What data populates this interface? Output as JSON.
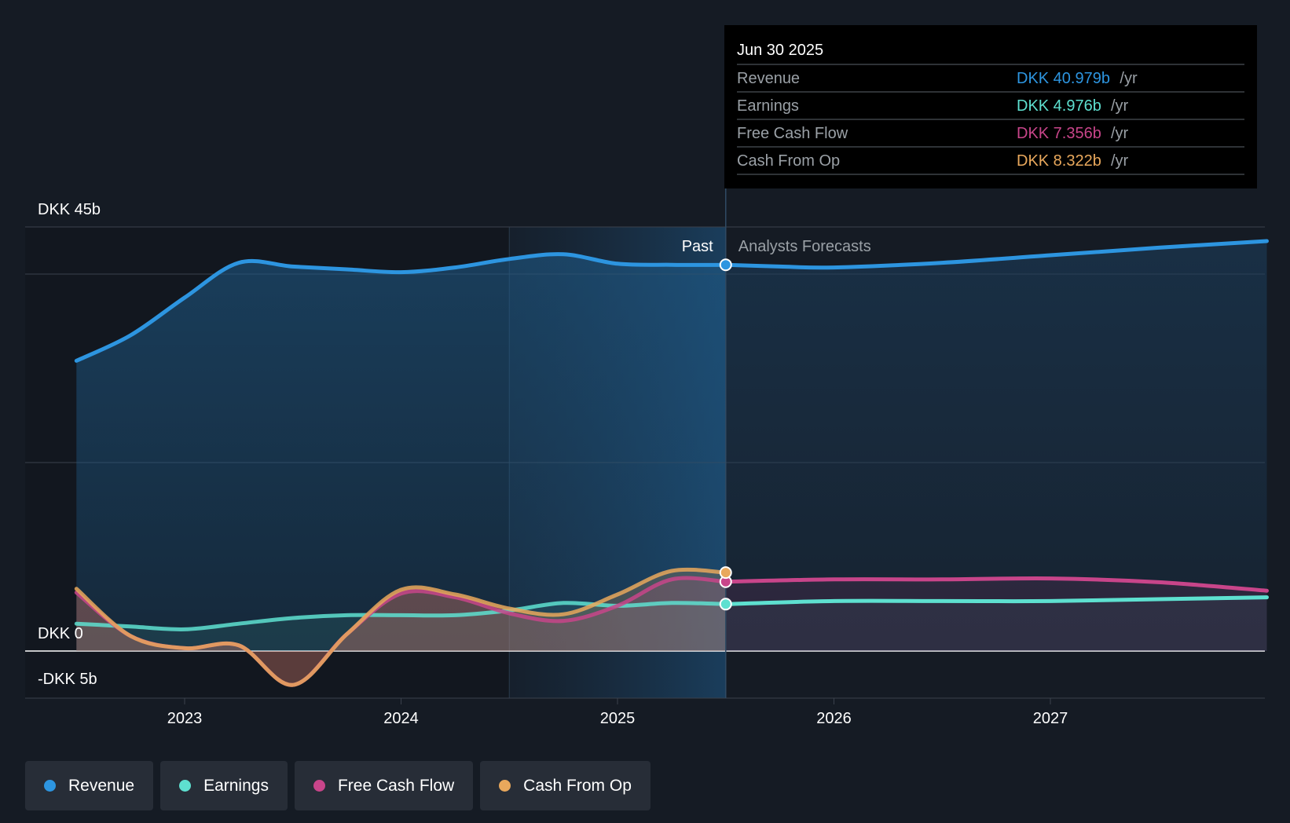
{
  "chart_data": {
    "type": "line",
    "x_unit": "year",
    "y_unit": "DKK billions",
    "ylim": [
      -5,
      45
    ],
    "xlim": [
      2022.3,
      2028.0
    ],
    "y_axis_labels": [
      {
        "label": "DKK 45b",
        "value": 45
      },
      {
        "label": "DKK 0",
        "value": 0
      },
      {
        "label": "-DKK 5b",
        "value": -5
      }
    ],
    "gridlines": [
      45,
      40,
      20,
      0,
      -5
    ],
    "x_ticks": [
      {
        "label": "2023",
        "value": 2023
      },
      {
        "label": "2024",
        "value": 2024
      },
      {
        "label": "2025",
        "value": 2025
      },
      {
        "label": "2026",
        "value": 2026
      },
      {
        "label": "2027",
        "value": 2027
      }
    ],
    "past_label": "Past",
    "forecast_label": "Analysts Forecasts",
    "divider_x": 2025.5,
    "highlight_start_x": 2024.5,
    "series": [
      {
        "name": "Revenue",
        "color": "#2d95e0",
        "area": true,
        "past": [
          [
            2022.5,
            30.8
          ],
          [
            2022.75,
            33.5
          ],
          [
            2023.0,
            37.5
          ],
          [
            2023.25,
            41.2
          ],
          [
            2023.5,
            40.8
          ],
          [
            2023.75,
            40.5
          ],
          [
            2024.0,
            40.2
          ],
          [
            2024.25,
            40.7
          ],
          [
            2024.5,
            41.6
          ],
          [
            2024.75,
            42.1
          ],
          [
            2025.0,
            41.1
          ],
          [
            2025.25,
            40.98
          ],
          [
            2025.5,
            40.979
          ]
        ],
        "forecast": [
          [
            2025.5,
            40.979
          ],
          [
            2025.75,
            40.8
          ],
          [
            2026.0,
            40.7
          ],
          [
            2026.5,
            41.2
          ],
          [
            2027.0,
            42.0
          ],
          [
            2027.5,
            42.8
          ],
          [
            2028.0,
            43.5
          ]
        ]
      },
      {
        "name": "Earnings",
        "color": "#5ee0d0",
        "area": true,
        "past": [
          [
            2022.5,
            2.9
          ],
          [
            2022.75,
            2.6
          ],
          [
            2023.0,
            2.3
          ],
          [
            2023.25,
            2.9
          ],
          [
            2023.5,
            3.5
          ],
          [
            2023.75,
            3.8
          ],
          [
            2024.0,
            3.8
          ],
          [
            2024.25,
            3.8
          ],
          [
            2024.5,
            4.3
          ],
          [
            2024.75,
            5.1
          ],
          [
            2025.0,
            4.8
          ],
          [
            2025.25,
            5.1
          ],
          [
            2025.5,
            4.976
          ]
        ],
        "forecast": [
          [
            2025.5,
            4.976
          ],
          [
            2026.0,
            5.3
          ],
          [
            2026.5,
            5.3
          ],
          [
            2027.0,
            5.3
          ],
          [
            2027.5,
            5.5
          ],
          [
            2028.0,
            5.7
          ]
        ]
      },
      {
        "name": "Free Cash Flow",
        "color": "#c8458a",
        "area": true,
        "past": [
          [
            2022.5,
            6.2
          ],
          [
            2022.75,
            1.6
          ],
          [
            2023.0,
            0.3
          ],
          [
            2023.25,
            0.6
          ],
          [
            2023.5,
            -3.6
          ],
          [
            2023.75,
            1.8
          ],
          [
            2024.0,
            6.1
          ],
          [
            2024.25,
            5.7
          ],
          [
            2024.5,
            4.0
          ],
          [
            2024.75,
            3.2
          ],
          [
            2025.0,
            4.8
          ],
          [
            2025.25,
            7.6
          ],
          [
            2025.5,
            7.356
          ]
        ],
        "forecast": [
          [
            2025.5,
            7.356
          ],
          [
            2026.0,
            7.6
          ],
          [
            2026.5,
            7.6
          ],
          [
            2027.0,
            7.7
          ],
          [
            2027.5,
            7.3
          ],
          [
            2028.0,
            6.4
          ]
        ]
      },
      {
        "name": "Cash From Op",
        "color": "#e9a85c",
        "area": true,
        "past": [
          [
            2022.5,
            6.6
          ],
          [
            2022.75,
            1.6
          ],
          [
            2023.0,
            0.3
          ],
          [
            2023.25,
            0.6
          ],
          [
            2023.5,
            -3.6
          ],
          [
            2023.75,
            1.8
          ],
          [
            2024.0,
            6.5
          ],
          [
            2024.25,
            6.0
          ],
          [
            2024.5,
            4.5
          ],
          [
            2024.75,
            3.9
          ],
          [
            2025.0,
            6.0
          ],
          [
            2025.25,
            8.5
          ],
          [
            2025.5,
            8.322
          ]
        ],
        "forecast": []
      }
    ],
    "tooltip": {
      "title": "Jun 30 2025",
      "rows": [
        {
          "name": "Revenue",
          "value": "DKK 40.979b",
          "unit": "/yr",
          "color": "#2d95e0"
        },
        {
          "name": "Earnings",
          "value": "DKK 4.976b",
          "unit": "/yr",
          "color": "#5ee0d0"
        },
        {
          "name": "Free Cash Flow",
          "value": "DKK 7.356b",
          "unit": "/yr",
          "color": "#c8458a"
        },
        {
          "name": "Cash From Op",
          "value": "DKK 8.322b",
          "unit": "/yr",
          "color": "#e9a85c"
        }
      ]
    }
  },
  "legend": [
    {
      "label": "Revenue",
      "color": "#2d95e0"
    },
    {
      "label": "Earnings",
      "color": "#5ee0d0"
    },
    {
      "label": "Free Cash Flow",
      "color": "#c8458a"
    },
    {
      "label": "Cash From Op",
      "color": "#e9a85c"
    }
  ]
}
